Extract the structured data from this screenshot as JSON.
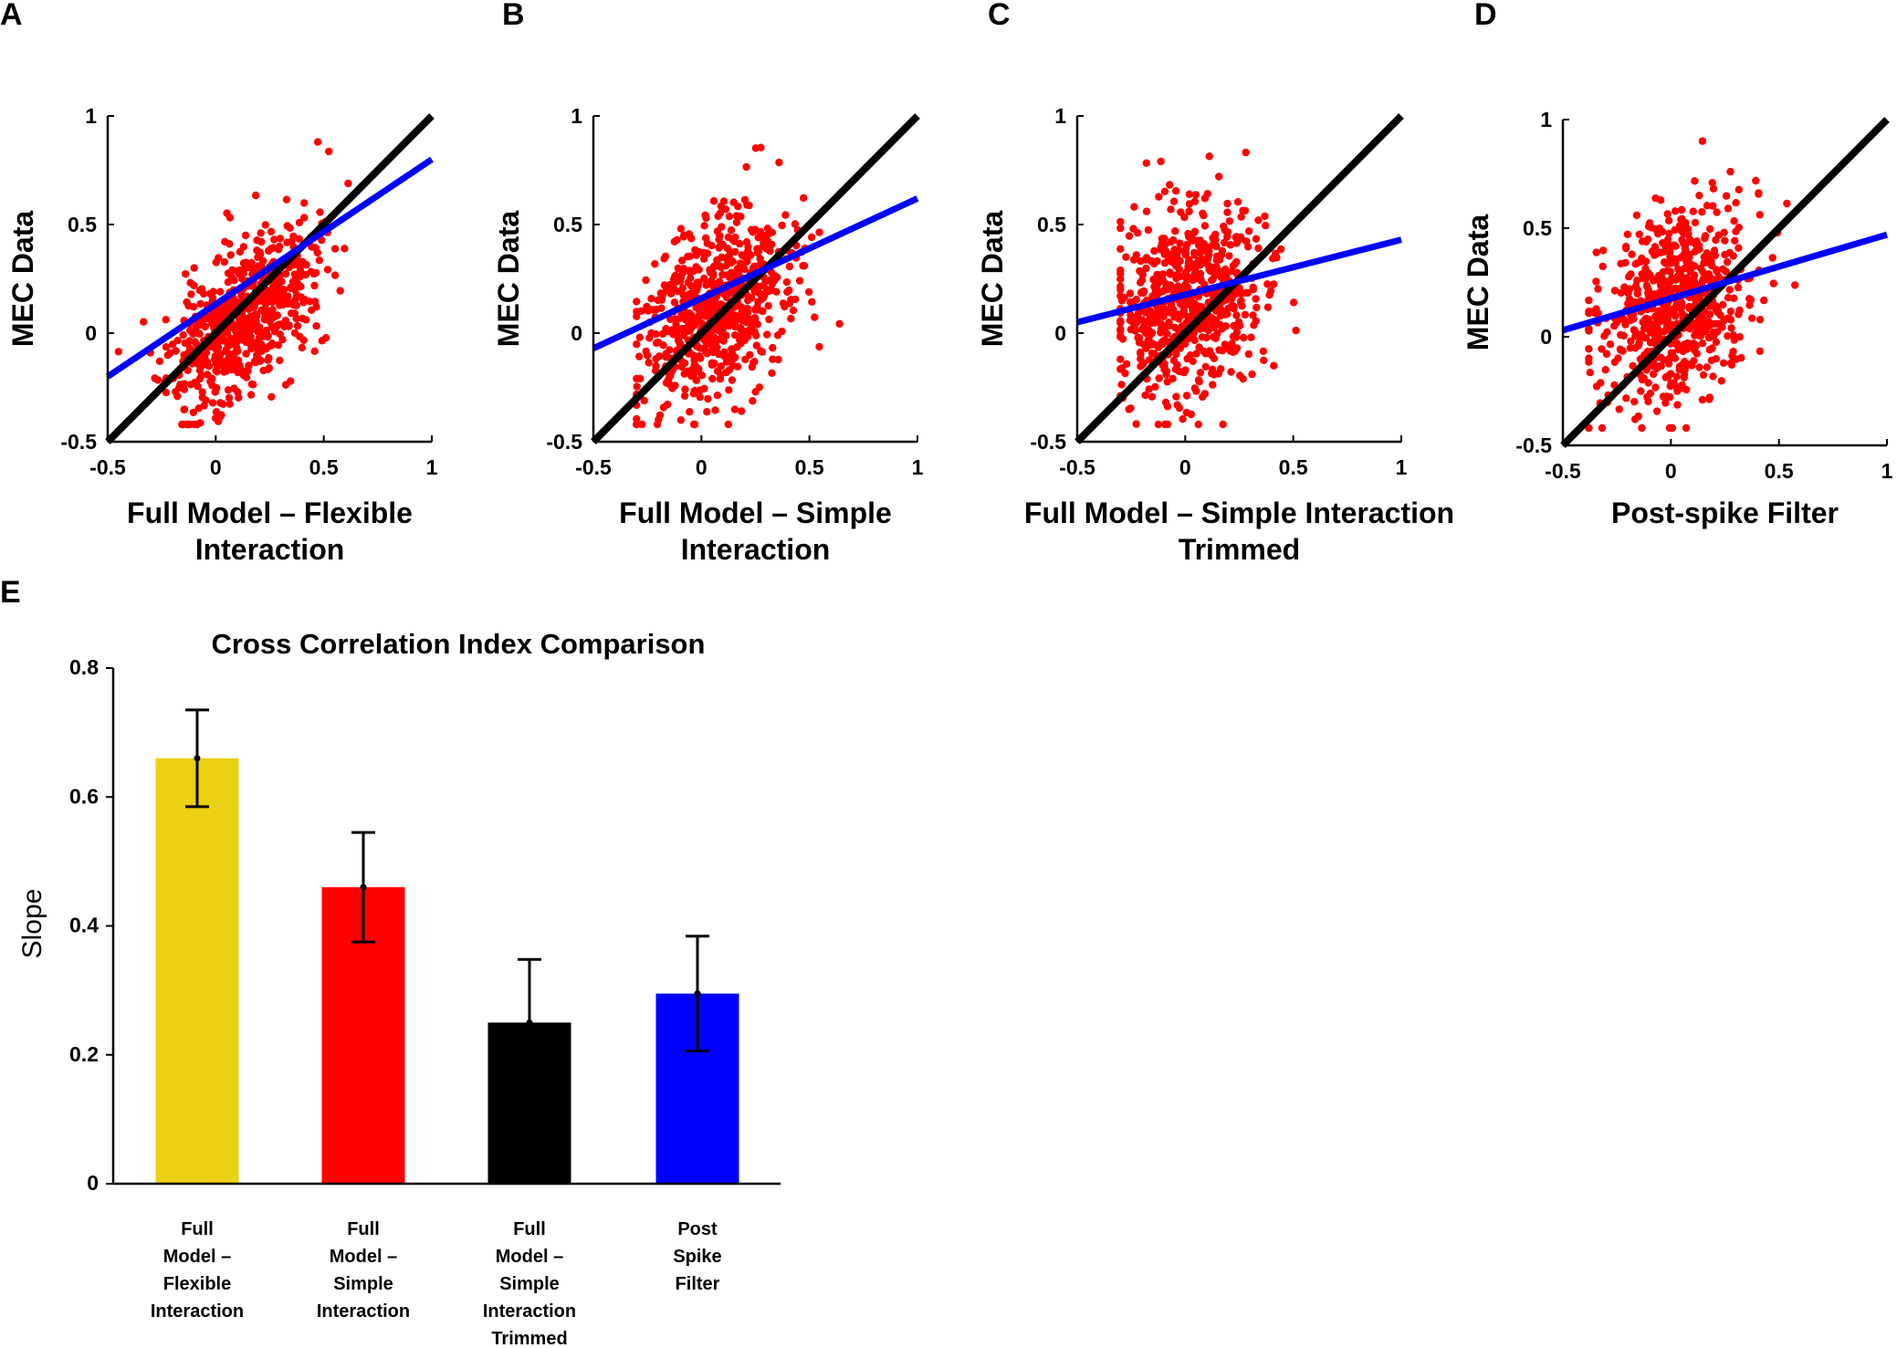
{
  "panel_labels": [
    "A",
    "B",
    "C",
    "D",
    "E"
  ],
  "colors": {
    "points": "#ff0000",
    "identity_line": "#000000",
    "fit_line": "#0000ff",
    "bars": [
      "#ecd012",
      "#ff0000",
      "#000000",
      "#0000ff"
    ]
  },
  "chart_data": [
    {
      "type": "scatter",
      "panel": "A",
      "xlabel": [
        "Full Model – Flexible",
        "Interaction"
      ],
      "ylabel": "MEC Data",
      "xlim": [
        -0.5,
        1
      ],
      "ylim": [
        -0.5,
        1
      ],
      "xticks": [
        "-0.5",
        "0",
        "0.5",
        "1"
      ],
      "yticks": [
        "-0.5",
        "0",
        "0.5",
        "1"
      ],
      "identity_line": [
        [
          -0.5,
          -0.5
        ],
        [
          1,
          1
        ]
      ],
      "fit_line": [
        [
          -0.5,
          -0.2
        ],
        [
          1,
          0.8
        ]
      ],
      "cloud": {
        "n": 650,
        "seed": 11,
        "x_mean": 0.12,
        "x_sd": 0.17,
        "corr_slope": 0.66,
        "y_center": 0.06,
        "y_noise": 0.17,
        "x_range": [
          -0.45,
          0.75
        ],
        "y_range": [
          -0.42,
          0.99
        ]
      }
    },
    {
      "type": "scatter",
      "panel": "B",
      "xlabel": [
        "Full Model – Simple",
        "Interaction"
      ],
      "ylabel": "MEC Data",
      "xlim": [
        -0.5,
        1
      ],
      "ylim": [
        -0.5,
        1
      ],
      "xticks": [
        "-0.5",
        "0",
        "0.5",
        "1"
      ],
      "yticks": [
        "-0.5",
        "0",
        "0.5",
        "1"
      ],
      "identity_line": [
        [
          -0.5,
          -0.5
        ],
        [
          1,
          1
        ]
      ],
      "fit_line": [
        [
          -0.5,
          -0.07
        ],
        [
          1,
          0.62
        ]
      ],
      "cloud": {
        "n": 650,
        "seed": 23,
        "x_mean": 0.06,
        "x_sd": 0.17,
        "corr_slope": 0.46,
        "y_center": 0.1,
        "y_noise": 0.2,
        "x_range": [
          -0.3,
          0.8
        ],
        "y_range": [
          -0.42,
          0.99
        ]
      }
    },
    {
      "type": "scatter",
      "panel": "C",
      "xlabel": [
        "Full Model – Simple Interaction",
        "Trimmed"
      ],
      "ylabel": "MEC Data",
      "xlim": [
        -0.5,
        1
      ],
      "ylim": [
        -0.5,
        1
      ],
      "xticks": [
        "-0.5",
        "0",
        "0.5",
        "1"
      ],
      "yticks": [
        "-0.5",
        "0",
        "0.5",
        "1"
      ],
      "identity_line": [
        [
          -0.5,
          -0.5
        ],
        [
          1,
          1
        ]
      ],
      "fit_line": [
        [
          -0.5,
          0.05
        ],
        [
          1,
          0.43
        ]
      ],
      "cloud": {
        "n": 650,
        "seed": 37,
        "x_mean": 0.02,
        "x_sd": 0.17,
        "corr_slope": 0.25,
        "y_center": 0.15,
        "y_noise": 0.22,
        "x_range": [
          -0.3,
          0.55
        ],
        "y_range": [
          -0.42,
          0.99
        ]
      }
    },
    {
      "type": "scatter",
      "panel": "D",
      "xlabel": [
        "Post-spike Filter"
      ],
      "ylabel": "MEC Data",
      "xlim": [
        -0.5,
        1
      ],
      "ylim": [
        -0.5,
        1
      ],
      "xticks": [
        "-0.5",
        "0",
        "0.5",
        "1"
      ],
      "yticks": [
        "-0.5",
        "0",
        "0.5",
        "1"
      ],
      "identity_line": [
        [
          -0.5,
          -0.5
        ],
        [
          1,
          1
        ]
      ],
      "fit_line": [
        [
          -0.5,
          0.03
        ],
        [
          1,
          0.47
        ]
      ],
      "cloud": {
        "n": 650,
        "seed": 53,
        "x_mean": 0.02,
        "x_sd": 0.17,
        "corr_slope": 0.3,
        "y_center": 0.15,
        "y_noise": 0.22,
        "x_range": [
          -0.38,
          0.62
        ],
        "y_range": [
          -0.42,
          0.99
        ]
      }
    },
    {
      "type": "bar",
      "panel": "E",
      "title": "Cross  Correlation  Index  Comparison",
      "ylabel": "Slope",
      "ylim": [
        0,
        0.8
      ],
      "yticks": [
        "0",
        "0.2",
        "0.4",
        "0.6",
        "0.8"
      ],
      "categories": [
        [
          "Full",
          "Model –",
          "Flexible",
          "Interaction"
        ],
        [
          "Full",
          "Model –",
          "Simple",
          "Interaction"
        ],
        [
          "Full",
          "Model –",
          "Simple",
          "Interaction",
          "Trimmed"
        ],
        [
          "Post",
          "Spike",
          "Filter"
        ]
      ],
      "values": [
        0.66,
        0.46,
        0.25,
        0.295
      ],
      "errors": [
        0.075,
        0.085,
        0.098,
        0.089
      ]
    }
  ]
}
